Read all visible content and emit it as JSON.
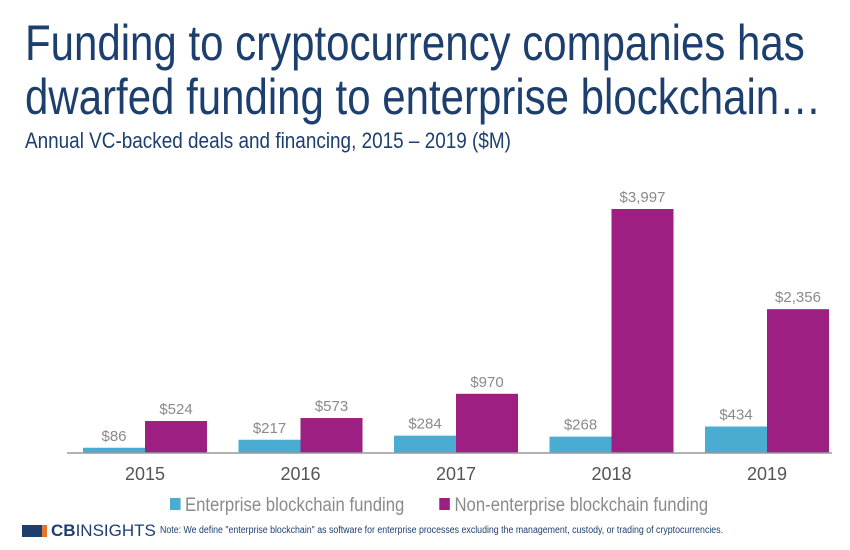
{
  "title_line1": "Funding to cryptocurrency companies has",
  "title_line2": "dwarfed funding to enterprise blockchain…",
  "subtitle": "Annual VC-backed deals and financing, 2015 – 2019 ($M)",
  "chart_data": {
    "type": "bar",
    "categories": [
      "2015",
      "2016",
      "2017",
      "2018",
      "2019"
    ],
    "series": [
      {
        "name": "Enterprise blockchain funding",
        "color": "#4bacd1",
        "values": [
          86,
          217,
          284,
          268,
          434
        ],
        "labels": [
          "$86",
          "$217",
          "$284",
          "$268",
          "$434"
        ]
      },
      {
        "name": "Non-enterprise blockchain funding",
        "color": "#9e1f82",
        "values": [
          524,
          573,
          970,
          3997,
          2356
        ],
        "labels": [
          "$524",
          "$573",
          "$970",
          "$3,997",
          "$2,356"
        ]
      }
    ],
    "legend": "bottom",
    "grid": false,
    "ylim": [
      0,
      4000
    ]
  },
  "logo": {
    "bold": "CB",
    "rest": "INSIGHTS"
  },
  "note": "Note: We define \"enterprise blockchain\" as software for enterprise processes excluding the management, custody, or trading of cryptocurrencies."
}
